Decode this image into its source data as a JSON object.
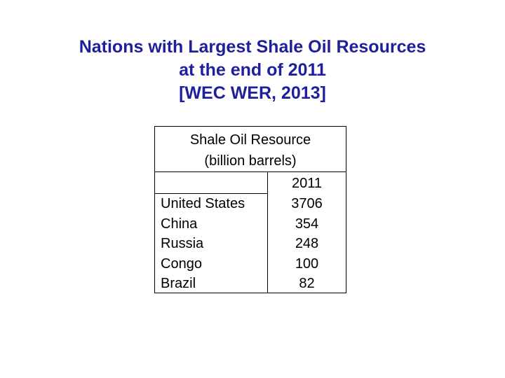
{
  "header": {
    "title": [
      "Nations with Largest Shale Oil Resources",
      "at the end of 2011",
      "[WEC WER, 2013]"
    ]
  },
  "table": {
    "header": [
      "Shale Oil Resource",
      "(billion barrels)"
    ],
    "year": 2011,
    "rows": [
      [
        "United States",
        3706
      ],
      [
        "China",
        354
      ],
      [
        "Russia",
        248
      ],
      [
        "Congo",
        100
      ],
      [
        "Brazil",
        82
      ]
    ]
  }
}
